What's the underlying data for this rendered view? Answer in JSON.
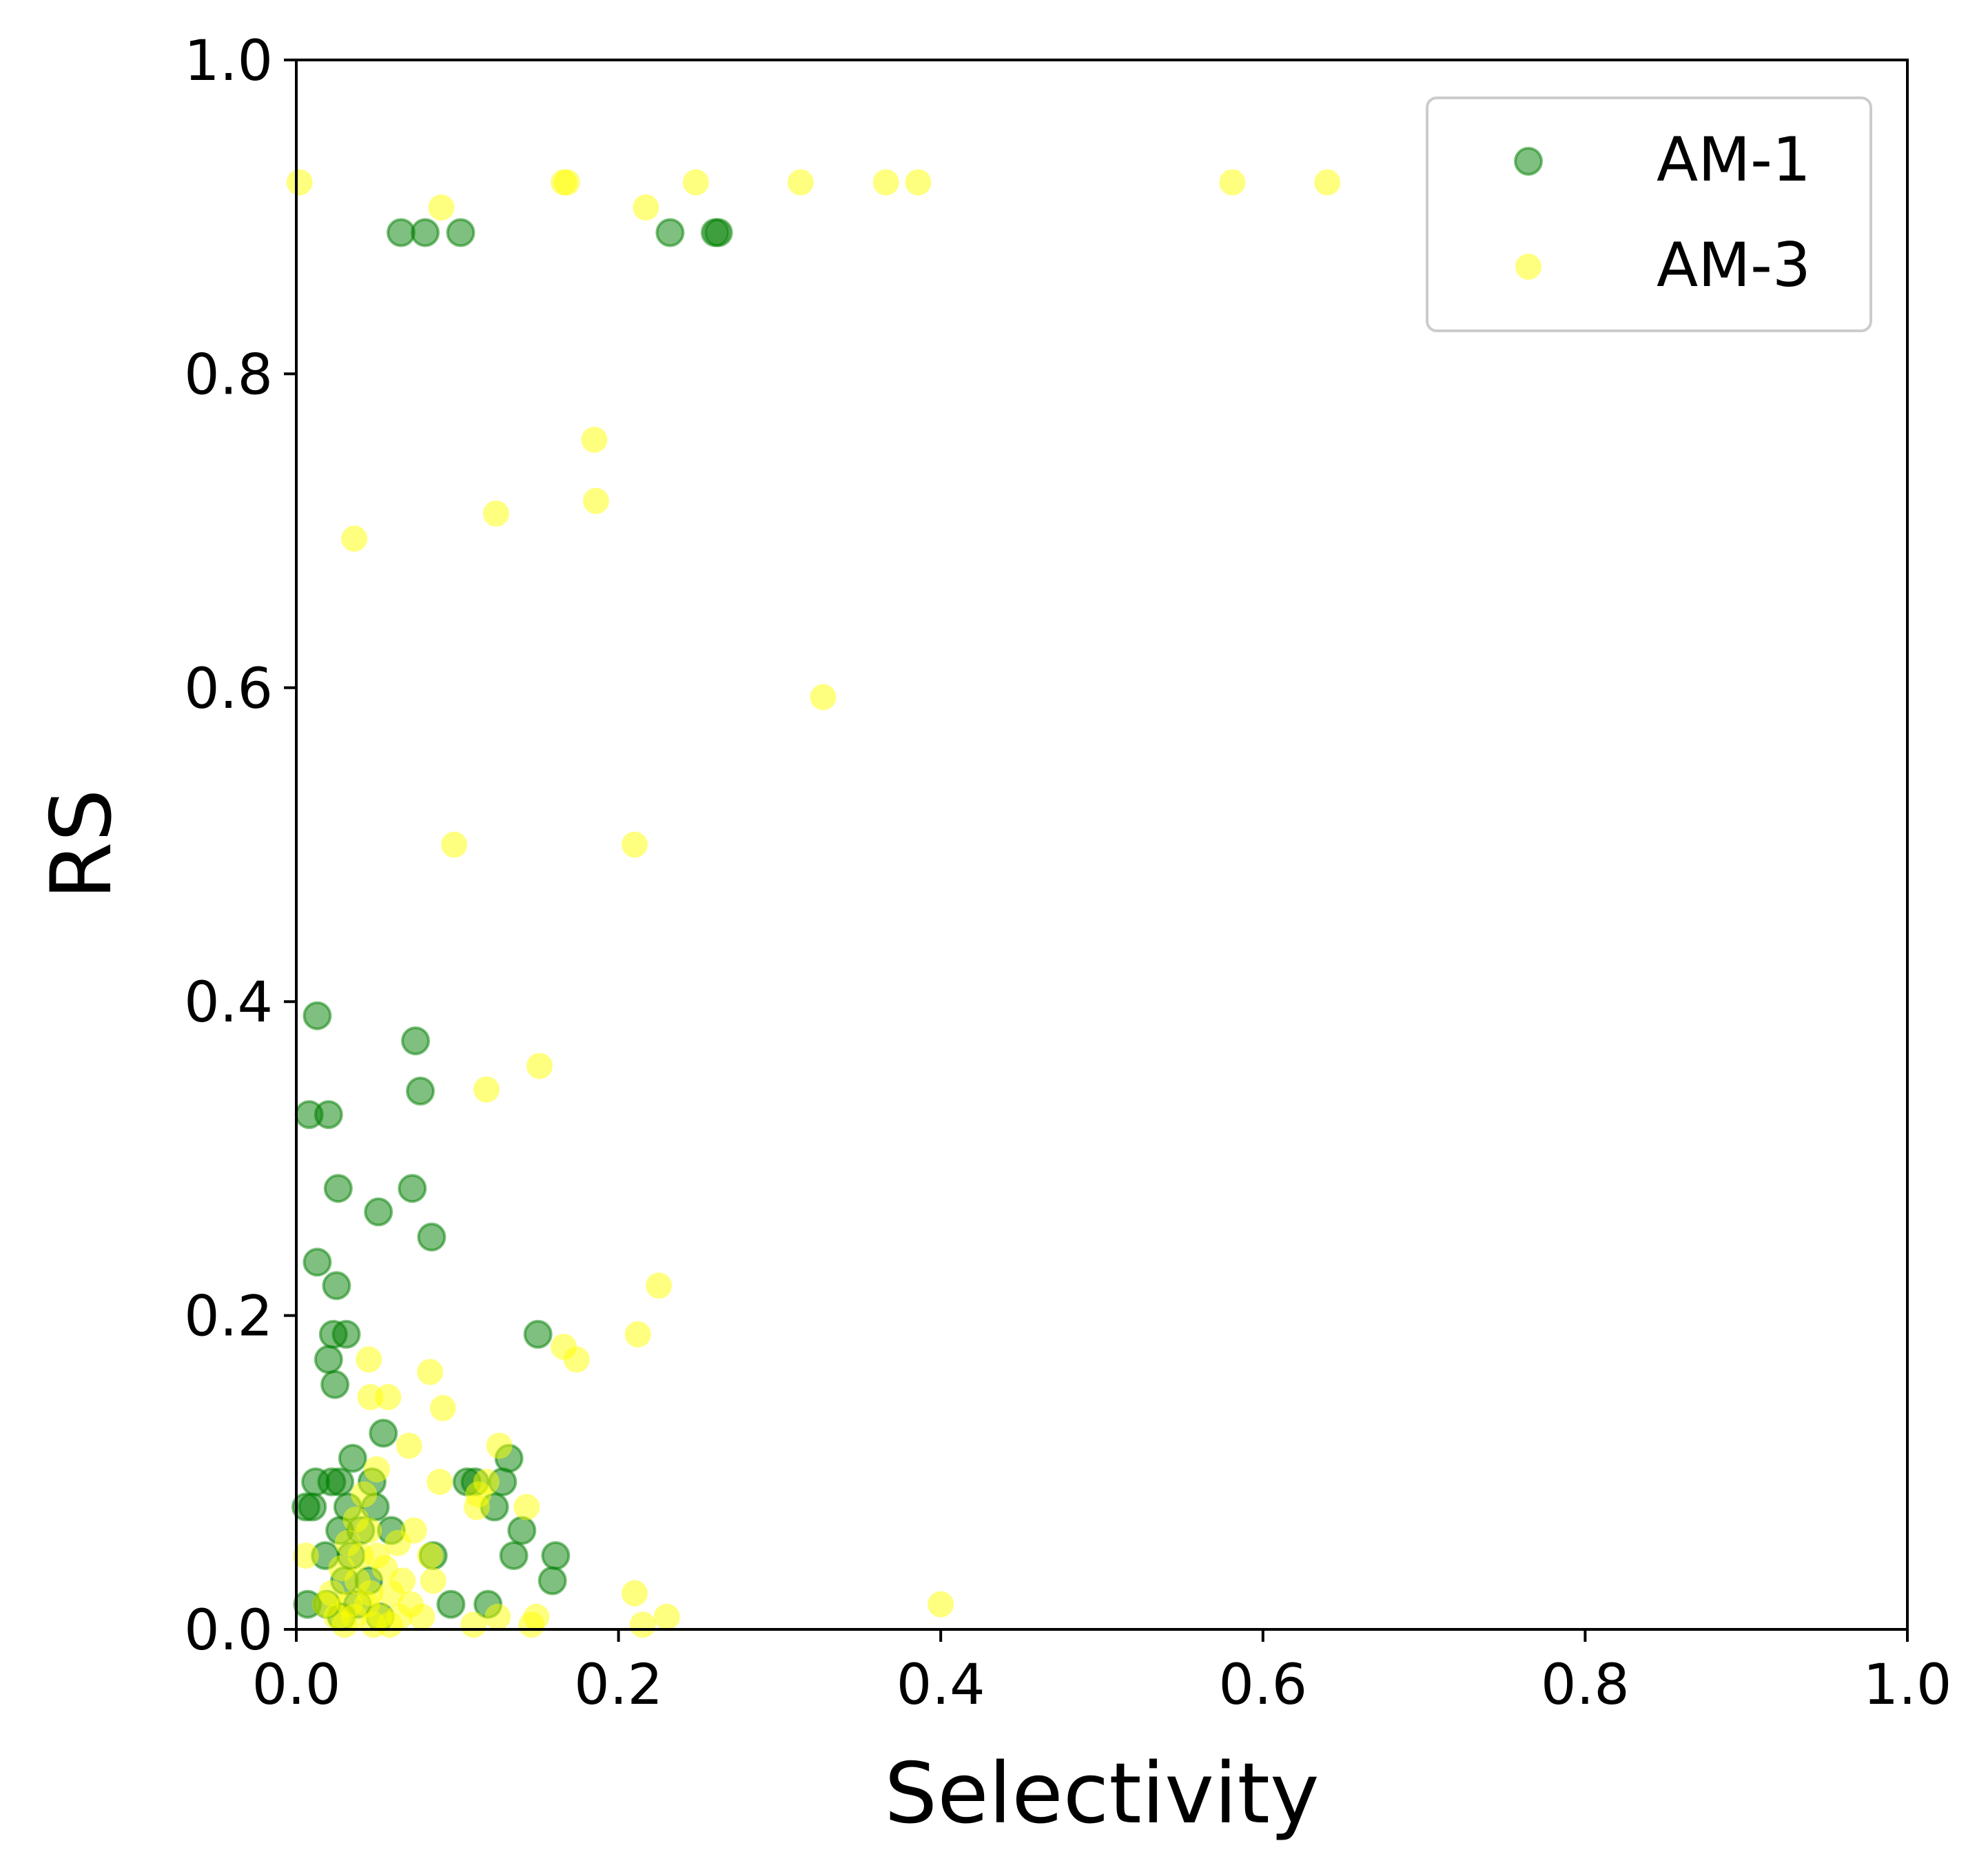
{
  "chart_data": {
    "type": "scatter",
    "title": "",
    "xlabel": "Selectivity",
    "ylabel": "RS",
    "xlim": [
      0.0,
      1.0
    ],
    "ylim": [
      0.0,
      1.0
    ],
    "xticks": [
      "0.0",
      "0.2",
      "0.4",
      "0.6",
      "0.8",
      "1.0"
    ],
    "yticks": [
      "0.0",
      "0.2",
      "0.4",
      "0.6",
      "0.8",
      "1.0"
    ],
    "grid": false,
    "legend_position": "top-right",
    "series": [
      {
        "name": "AM-1",
        "color": "#008000",
        "alpha": 0.5,
        "points": [
          [
            0.065,
            0.89
          ],
          [
            0.08,
            0.89
          ],
          [
            0.102,
            0.89
          ],
          [
            0.232,
            0.89
          ],
          [
            0.26,
            0.89
          ],
          [
            0.262,
            0.89
          ],
          [
            0.013,
            0.391
          ],
          [
            0.074,
            0.375
          ],
          [
            0.077,
            0.343
          ],
          [
            0.008,
            0.328
          ],
          [
            0.02,
            0.328
          ],
          [
            0.026,
            0.281
          ],
          [
            0.072,
            0.281
          ],
          [
            0.051,
            0.266
          ],
          [
            0.084,
            0.25
          ],
          [
            0.013,
            0.234
          ],
          [
            0.025,
            0.219
          ],
          [
            0.023,
            0.188
          ],
          [
            0.031,
            0.188
          ],
          [
            0.15,
            0.188
          ],
          [
            0.02,
            0.172
          ],
          [
            0.024,
            0.156
          ],
          [
            0.054,
            0.125
          ],
          [
            0.035,
            0.109
          ],
          [
            0.132,
            0.109
          ],
          [
            0.012,
            0.094
          ],
          [
            0.022,
            0.094
          ],
          [
            0.027,
            0.094
          ],
          [
            0.047,
            0.094
          ],
          [
            0.106,
            0.094
          ],
          [
            0.111,
            0.094
          ],
          [
            0.128,
            0.094
          ],
          [
            0.006,
            0.078
          ],
          [
            0.01,
            0.078
          ],
          [
            0.032,
            0.078
          ],
          [
            0.049,
            0.078
          ],
          [
            0.123,
            0.078
          ],
          [
            0.027,
            0.063
          ],
          [
            0.04,
            0.063
          ],
          [
            0.059,
            0.063
          ],
          [
            0.14,
            0.063
          ],
          [
            0.018,
            0.047
          ],
          [
            0.034,
            0.047
          ],
          [
            0.085,
            0.047
          ],
          [
            0.135,
            0.047
          ],
          [
            0.161,
            0.047
          ],
          [
            0.03,
            0.031
          ],
          [
            0.045,
            0.031
          ],
          [
            0.159,
            0.031
          ],
          [
            0.007,
            0.016
          ],
          [
            0.019,
            0.016
          ],
          [
            0.038,
            0.016
          ],
          [
            0.096,
            0.016
          ],
          [
            0.119,
            0.016
          ],
          [
            0.028,
            0.008
          ],
          [
            0.052,
            0.008
          ]
        ]
      },
      {
        "name": "AM-3",
        "color": "#ffff00",
        "alpha": 0.5,
        "points": [
          [
            0.002,
            0.922
          ],
          [
            0.166,
            0.922
          ],
          [
            0.168,
            0.922
          ],
          [
            0.248,
            0.922
          ],
          [
            0.313,
            0.922
          ],
          [
            0.366,
            0.922
          ],
          [
            0.386,
            0.922
          ],
          [
            0.581,
            0.922
          ],
          [
            0.64,
            0.922
          ],
          [
            0.09,
            0.906
          ],
          [
            0.217,
            0.906
          ],
          [
            0.185,
            0.758
          ],
          [
            0.186,
            0.719
          ],
          [
            0.124,
            0.711
          ],
          [
            0.036,
            0.695
          ],
          [
            0.327,
            0.594
          ],
          [
            0.098,
            0.5
          ],
          [
            0.21,
            0.5
          ],
          [
            0.151,
            0.359
          ],
          [
            0.118,
            0.344
          ],
          [
            0.225,
            0.219
          ],
          [
            0.212,
            0.188
          ],
          [
            0.166,
            0.18
          ],
          [
            0.174,
            0.172
          ],
          [
            0.045,
            0.172
          ],
          [
            0.083,
            0.164
          ],
          [
            0.057,
            0.148
          ],
          [
            0.046,
            0.148
          ],
          [
            0.091,
            0.141
          ],
          [
            0.07,
            0.117
          ],
          [
            0.126,
            0.117
          ],
          [
            0.05,
            0.102
          ],
          [
            0.089,
            0.094
          ],
          [
            0.118,
            0.094
          ],
          [
            0.113,
            0.086
          ],
          [
            0.042,
            0.086
          ],
          [
            0.143,
            0.078
          ],
          [
            0.112,
            0.078
          ],
          [
            0.037,
            0.07
          ],
          [
            0.045,
            0.063
          ],
          [
            0.073,
            0.063
          ],
          [
            0.063,
            0.055
          ],
          [
            0.032,
            0.055
          ],
          [
            0.04,
            0.047
          ],
          [
            0.05,
            0.047
          ],
          [
            0.006,
            0.047
          ],
          [
            0.083,
            0.047
          ],
          [
            0.028,
            0.039
          ],
          [
            0.055,
            0.039
          ],
          [
            0.038,
            0.031
          ],
          [
            0.085,
            0.031
          ],
          [
            0.066,
            0.031
          ],
          [
            0.022,
            0.023
          ],
          [
            0.046,
            0.023
          ],
          [
            0.059,
            0.023
          ],
          [
            0.21,
            0.023
          ],
          [
            0.018,
            0.016
          ],
          [
            0.033,
            0.016
          ],
          [
            0.044,
            0.016
          ],
          [
            0.071,
            0.016
          ],
          [
            0.4,
            0.016
          ],
          [
            0.025,
            0.008
          ],
          [
            0.036,
            0.008
          ],
          [
            0.052,
            0.008
          ],
          [
            0.064,
            0.008
          ],
          [
            0.078,
            0.008
          ],
          [
            0.125,
            0.008
          ],
          [
            0.149,
            0.008
          ],
          [
            0.23,
            0.008
          ],
          [
            0.03,
            0.003
          ],
          [
            0.048,
            0.003
          ],
          [
            0.058,
            0.003
          ],
          [
            0.11,
            0.003
          ],
          [
            0.146,
            0.003
          ],
          [
            0.215,
            0.003
          ]
        ]
      }
    ]
  }
}
